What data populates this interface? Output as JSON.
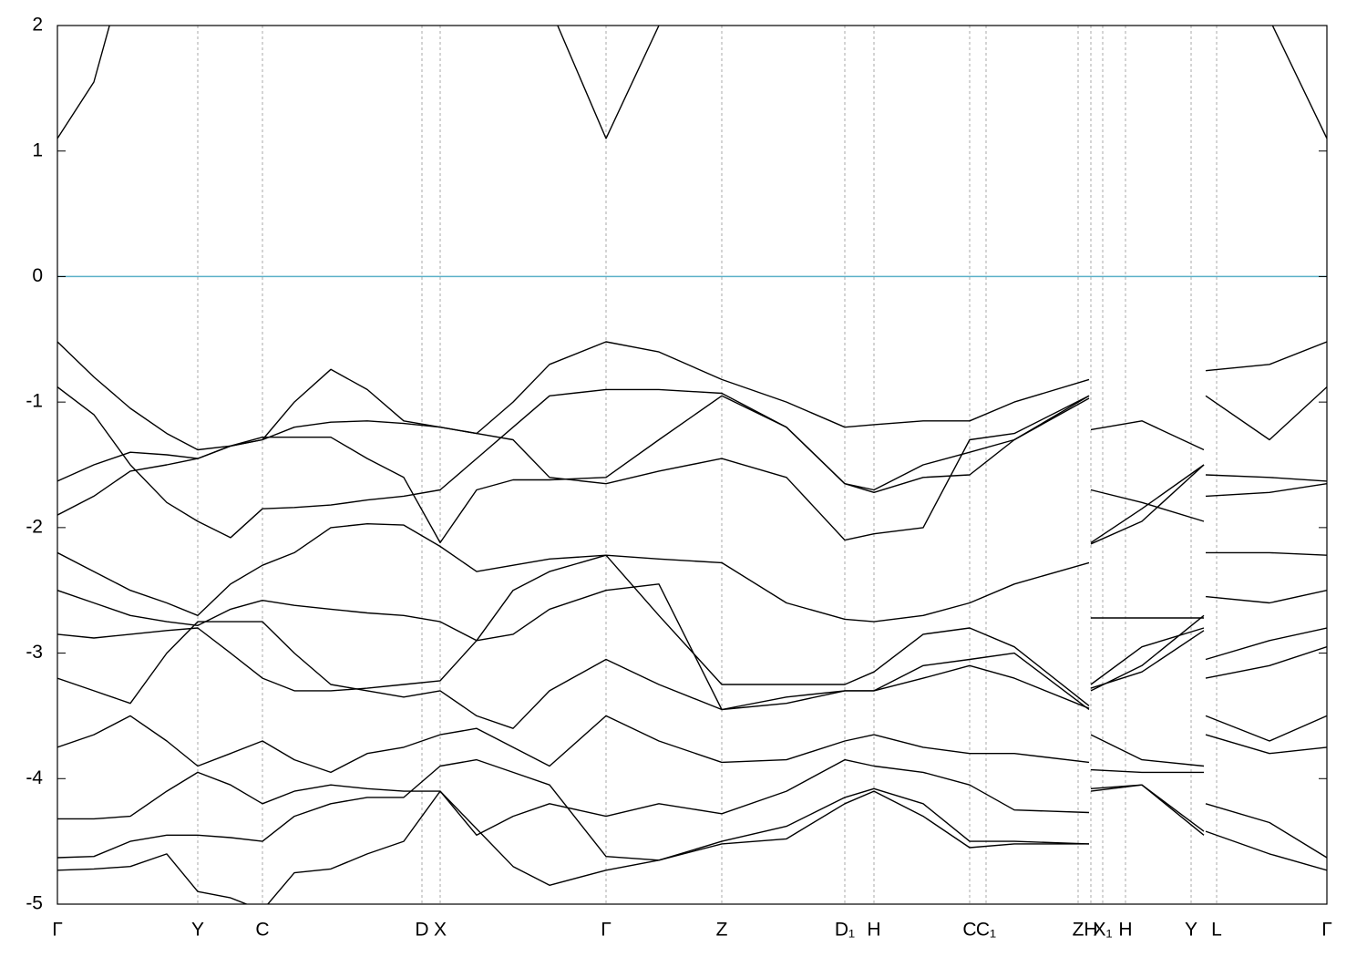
{
  "chart_data": {
    "type": "line",
    "xlim": [
      0,
      1393
    ],
    "ylim": [
      -5,
      2
    ],
    "yticks": [
      2,
      1,
      0,
      -1,
      -2,
      -3,
      -4,
      -5
    ],
    "xticks": [
      {
        "value": 0,
        "label": "Γ"
      },
      {
        "value": 154,
        "label": "Y"
      },
      {
        "value": 225,
        "label": "C"
      },
      {
        "value": 400,
        "label": "D"
      },
      {
        "value": 420,
        "label": "X"
      },
      {
        "value": 602,
        "label": "Γ"
      },
      {
        "value": 729,
        "label": "Z"
      },
      {
        "value": 864,
        "label": "D₁"
      },
      {
        "value": 896,
        "label": "H"
      },
      {
        "value": 1001,
        "label": "C"
      },
      {
        "value": 1019,
        "label": "C₁"
      },
      {
        "value": 1120,
        "label": "Z"
      },
      {
        "value": 1134,
        "label": "H"
      },
      {
        "value": 1147,
        "label": "X₁"
      },
      {
        "value": 1172,
        "label": "H"
      },
      {
        "value": 1244,
        "label": "Y"
      },
      {
        "value": 1272,
        "label": "L"
      },
      {
        "value": 1393,
        "label": "Γ"
      }
    ],
    "grid": true,
    "hline": 0,
    "hline_color": "#5bb0c9",
    "x": [
      0,
      40,
      80,
      120,
      154,
      190,
      225,
      260,
      300,
      340,
      380,
      420,
      460,
      500,
      540,
      602,
      660,
      729,
      800,
      864,
      896,
      950,
      1001,
      1050,
      1132,
      1132.5,
      1134,
      1190,
      1258,
      1258.5,
      1260,
      1330,
      1393
    ],
    "series": [
      {
        "color": "#000000",
        "values": [
          1.1,
          1.55,
          2.6,
          null,
          null,
          null,
          null,
          null,
          null,
          null,
          null,
          null,
          null,
          null,
          2.15,
          1.1,
          2.0,
          null,
          null,
          null,
          null,
          null,
          null,
          null,
          null,
          null,
          null,
          null,
          null,
          null,
          null,
          2.05,
          1.1
        ]
      },
      {
        "color": "#000000",
        "values": [
          -0.52,
          -0.8,
          -1.05,
          -1.25,
          -1.38,
          -1.35,
          -1.3,
          -1.0,
          -0.74,
          -0.9,
          -1.15,
          -1.2,
          -1.25,
          -1.0,
          -0.7,
          -0.52,
          -0.6,
          -0.82,
          -1.0,
          -1.2,
          -1.18,
          -1.15,
          -1.15,
          -1.0,
          -0.82,
          null,
          -1.22,
          -1.15,
          -1.38,
          null,
          -0.75,
          -0.7,
          -0.52
        ]
      },
      {
        "color": "#000000",
        "values": [
          -0.88,
          -1.1,
          -1.5,
          -1.8,
          -1.95,
          -2.08,
          -1.85,
          -1.84,
          -1.82,
          -1.78,
          -1.75,
          -1.7,
          -1.45,
          -1.2,
          -0.95,
          -0.9,
          -0.9,
          -0.93,
          -1.2,
          -1.65,
          -1.72,
          -1.6,
          -1.58,
          -1.3,
          -0.95,
          null,
          -1.7,
          -1.8,
          -1.95,
          null,
          -0.95,
          -1.3,
          -0.88
        ]
      },
      {
        "color": "#000000",
        "values": [
          -1.63,
          -1.5,
          -1.4,
          -1.42,
          -1.45,
          -1.35,
          -1.3,
          -1.2,
          -1.16,
          -1.15,
          -1.17,
          -1.2,
          -1.25,
          -1.3,
          -1.6,
          -1.65,
          -1.55,
          -1.45,
          -1.6,
          -2.1,
          -2.05,
          -2.0,
          -1.3,
          -1.25,
          -0.95,
          null,
          -2.12,
          -1.85,
          -1.5,
          null,
          -1.58,
          -1.6,
          -1.63
        ]
      },
      {
        "color": "#000000",
        "values": [
          -1.9,
          -1.75,
          -1.55,
          -1.5,
          -1.45,
          -1.35,
          -1.28,
          -1.28,
          -1.28,
          -1.45,
          -1.6,
          -2.12,
          -1.7,
          -1.62,
          -1.62,
          -1.6,
          -1.3,
          -0.95,
          -1.2,
          -1.65,
          -1.7,
          -1.5,
          -1.4,
          -1.3,
          -0.97,
          null,
          -2.13,
          -1.95,
          -1.5,
          null,
          -1.75,
          -1.72,
          -1.65
        ]
      },
      {
        "color": "#000000",
        "values": [
          -2.2,
          -2.35,
          -2.5,
          -2.6,
          -2.7,
          -2.45,
          -2.3,
          -2.2,
          -2.0,
          -1.97,
          -1.98,
          -2.15,
          -2.35,
          -2.3,
          -2.25,
          -2.22,
          -2.25,
          -2.28,
          -2.6,
          -2.73,
          -2.75,
          -2.7,
          -2.6,
          -2.45,
          -2.28,
          null,
          -2.72,
          -2.72,
          -2.72,
          null,
          -2.2,
          -2.2,
          -2.22
        ]
      },
      {
        "color": "#000000",
        "values": [
          -2.5,
          -2.6,
          -2.7,
          -2.75,
          -2.78,
          -2.65,
          -2.58,
          -2.62,
          -2.65,
          -2.68,
          -2.7,
          -2.75,
          -2.9,
          -2.85,
          -2.65,
          -2.5,
          -2.45,
          -3.45,
          -3.35,
          -3.3,
          -3.3,
          -3.1,
          -3.05,
          -3.0,
          -3.45,
          null,
          -3.25,
          -2.95,
          -2.8,
          null,
          -2.55,
          -2.6,
          -2.5
        ]
      },
      {
        "color": "#000000",
        "values": [
          -2.85,
          -2.88,
          -2.85,
          -2.82,
          -2.8,
          -3.0,
          -3.2,
          -3.3,
          -3.3,
          -3.28,
          -3.25,
          -3.22,
          -2.9,
          -2.5,
          -2.35,
          -2.22,
          -2.7,
          -3.25,
          -3.25,
          -3.25,
          -3.15,
          -2.85,
          -2.8,
          -2.95,
          -3.42,
          null,
          -3.3,
          -3.1,
          -2.7,
          null,
          -3.05,
          -2.9,
          -2.8
        ]
      },
      {
        "color": "#000000",
        "values": [
          -3.2,
          -3.3,
          -3.4,
          -3.0,
          -2.75,
          -2.75,
          -2.75,
          -3.0,
          -3.25,
          -3.3,
          -3.35,
          -3.3,
          -3.5,
          -3.6,
          -3.3,
          -3.05,
          -3.25,
          -3.45,
          -3.4,
          -3.3,
          -3.3,
          -3.2,
          -3.1,
          -3.2,
          -3.44,
          null,
          -3.28,
          -3.15,
          -2.82,
          null,
          -3.2,
          -3.1,
          -2.95
        ]
      },
      {
        "color": "#000000",
        "values": [
          -3.75,
          -3.65,
          -3.5,
          -3.7,
          -3.9,
          -3.8,
          -3.7,
          -3.85,
          -3.95,
          -3.8,
          -3.75,
          -3.65,
          -3.6,
          -3.75,
          -3.9,
          -3.5,
          -3.7,
          -3.87,
          -3.85,
          -3.7,
          -3.65,
          -3.75,
          -3.8,
          -3.8,
          -3.87,
          null,
          -3.65,
          -3.85,
          -3.9,
          null,
          -3.5,
          -3.7,
          -3.5
        ]
      },
      {
        "color": "#000000",
        "values": [
          -4.32,
          -4.32,
          -4.3,
          -4.1,
          -3.95,
          -4.05,
          -4.2,
          -4.1,
          -4.05,
          -4.08,
          -4.1,
          -4.1,
          -4.45,
          -4.3,
          -4.2,
          -4.3,
          -4.2,
          -4.28,
          -4.1,
          -3.85,
          -3.9,
          -3.95,
          -4.05,
          -4.25,
          -4.27,
          null,
          -3.93,
          -3.95,
          -3.95,
          null,
          -3.65,
          -3.8,
          -3.75
        ]
      },
      {
        "color": "#000000",
        "values": [
          -4.63,
          -4.62,
          -4.5,
          -4.45,
          -4.45,
          -4.47,
          -4.5,
          -4.3,
          -4.2,
          -4.15,
          -4.15,
          -3.9,
          -3.85,
          -3.95,
          -4.05,
          -4.62,
          -4.65,
          -4.5,
          -4.38,
          -4.15,
          -4.08,
          -4.2,
          -4.5,
          -4.5,
          -4.52,
          null,
          -4.08,
          -4.05,
          -4.42,
          null,
          -4.2,
          -4.35,
          -4.63
        ]
      },
      {
        "color": "#000000",
        "values": [
          -4.73,
          -4.72,
          -4.7,
          -4.6,
          -4.9,
          -4.95,
          -5.05,
          -4.75,
          -4.72,
          -4.6,
          -4.5,
          -4.1,
          -4.4,
          -4.7,
          -4.85,
          -4.73,
          -4.65,
          -4.52,
          -4.48,
          -4.2,
          -4.1,
          -4.3,
          -4.55,
          -4.52,
          -4.52,
          null,
          -4.1,
          -4.05,
          -4.45,
          null,
          -4.42,
          -4.6,
          -4.73
        ]
      }
    ]
  }
}
